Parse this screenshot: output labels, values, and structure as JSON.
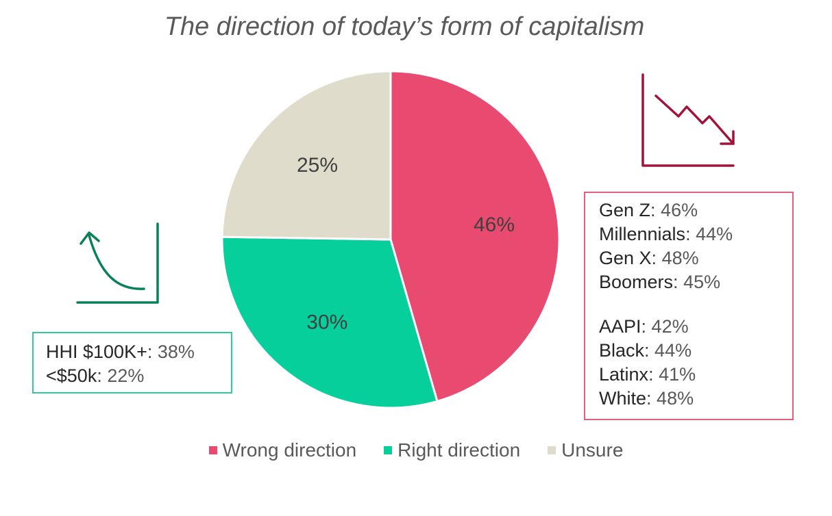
{
  "chart_data": {
    "type": "pie",
    "title": "The direction of today’s form of capitalism",
    "categories": [
      "Wrong direction",
      "Right direction",
      "Unsure"
    ],
    "values": [
      46,
      30,
      25
    ],
    "value_labels": [
      "46%",
      "30%",
      "25%"
    ],
    "colors": [
      "#e84a70",
      "#06cf9c",
      "#e0dccc"
    ],
    "legend_position": "bottom",
    "annotations": {
      "income": [
        {
          "label": "HHI $100K+",
          "value": "38%"
        },
        {
          "label": "<$50k",
          "value": "22%"
        }
      ],
      "generations": [
        {
          "label": "Gen Z",
          "value": "46%"
        },
        {
          "label": "Millennials",
          "value": "44%"
        },
        {
          "label": "Gen X",
          "value": "48%"
        },
        {
          "label": "Boomers",
          "value": "45%"
        }
      ],
      "race": [
        {
          "label": "AAPI",
          "value": "42%"
        },
        {
          "label": "Black",
          "value": "44%"
        },
        {
          "label": "Latinx",
          "value": "41%"
        },
        {
          "label": "White",
          "value": "48%"
        }
      ]
    }
  },
  "icons": {
    "trend_down": "trend-down-icon",
    "trend_up": "trend-up-icon",
    "trend_down_color": "#a0143c",
    "trend_up_color": "#0a7f5c"
  }
}
